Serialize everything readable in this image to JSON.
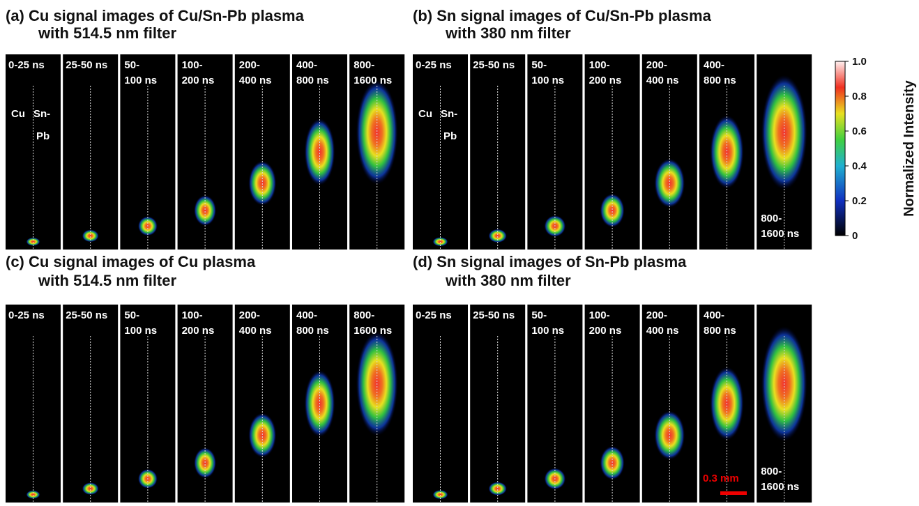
{
  "panels": [
    {
      "title": [
        "(a)  Cu signal images of Cu/Sn-Pb plasma",
        "with 514.5 nm filter"
      ],
      "frames": [
        [
          "0-25 ns"
        ],
        [
          "25-50 ns"
        ],
        [
          "50-",
          "100 ns"
        ],
        [
          "100-",
          "200 ns"
        ],
        [
          "200-",
          "400 ns"
        ],
        [
          "400-",
          "800 ns"
        ],
        [
          "800-",
          "1600 ns"
        ]
      ],
      "annotations": [
        "Cu",
        "Sn-",
        "Pb"
      ]
    },
    {
      "title": [
        "(b)  Sn signal images of Cu/Sn-Pb plasma",
        "with 380 nm filter"
      ],
      "frames": [
        [
          "0-25 ns"
        ],
        [
          "25-50 ns"
        ],
        [
          "50-",
          "100 ns"
        ],
        [
          "100-",
          "200 ns"
        ],
        [
          "200-",
          "400 ns"
        ],
        [
          "400-",
          "800 ns"
        ],
        [
          "800-",
          "1600 ns"
        ]
      ],
      "annotations": [
        "Cu",
        "Sn-",
        "Pb"
      ]
    },
    {
      "title": [
        "(c)  Cu signal images of Cu plasma",
        "with 514.5 nm filter"
      ],
      "frames": [
        [
          "0-25 ns"
        ],
        [
          "25-50 ns"
        ],
        [
          "50-",
          "100 ns"
        ],
        [
          "100-",
          "200 ns"
        ],
        [
          "200-",
          "400 ns"
        ],
        [
          "400-",
          "800 ns"
        ],
        [
          "800-",
          "1600 ns"
        ]
      ]
    },
    {
      "title": [
        "(d)  Sn signal images of Sn-Pb plasma",
        "with 380 nm filter"
      ],
      "frames": [
        [
          "0-25 ns"
        ],
        [
          "25-50 ns"
        ],
        [
          "50-",
          "100 ns"
        ],
        [
          "100-",
          "200 ns"
        ],
        [
          "200-",
          "400 ns"
        ],
        [
          "400-",
          "800 ns"
        ],
        [
          "800-",
          "1600 ns"
        ]
      ],
      "scale_bar": "0.3 mm"
    }
  ],
  "colorbar": {
    "label": "Normalized Intensity",
    "lim": [
      0,
      1
    ],
    "ticks": [
      0,
      0.2,
      0.4,
      0.6,
      0.8,
      {
        "value": 1,
        "label": "1.0"
      }
    ]
  }
}
